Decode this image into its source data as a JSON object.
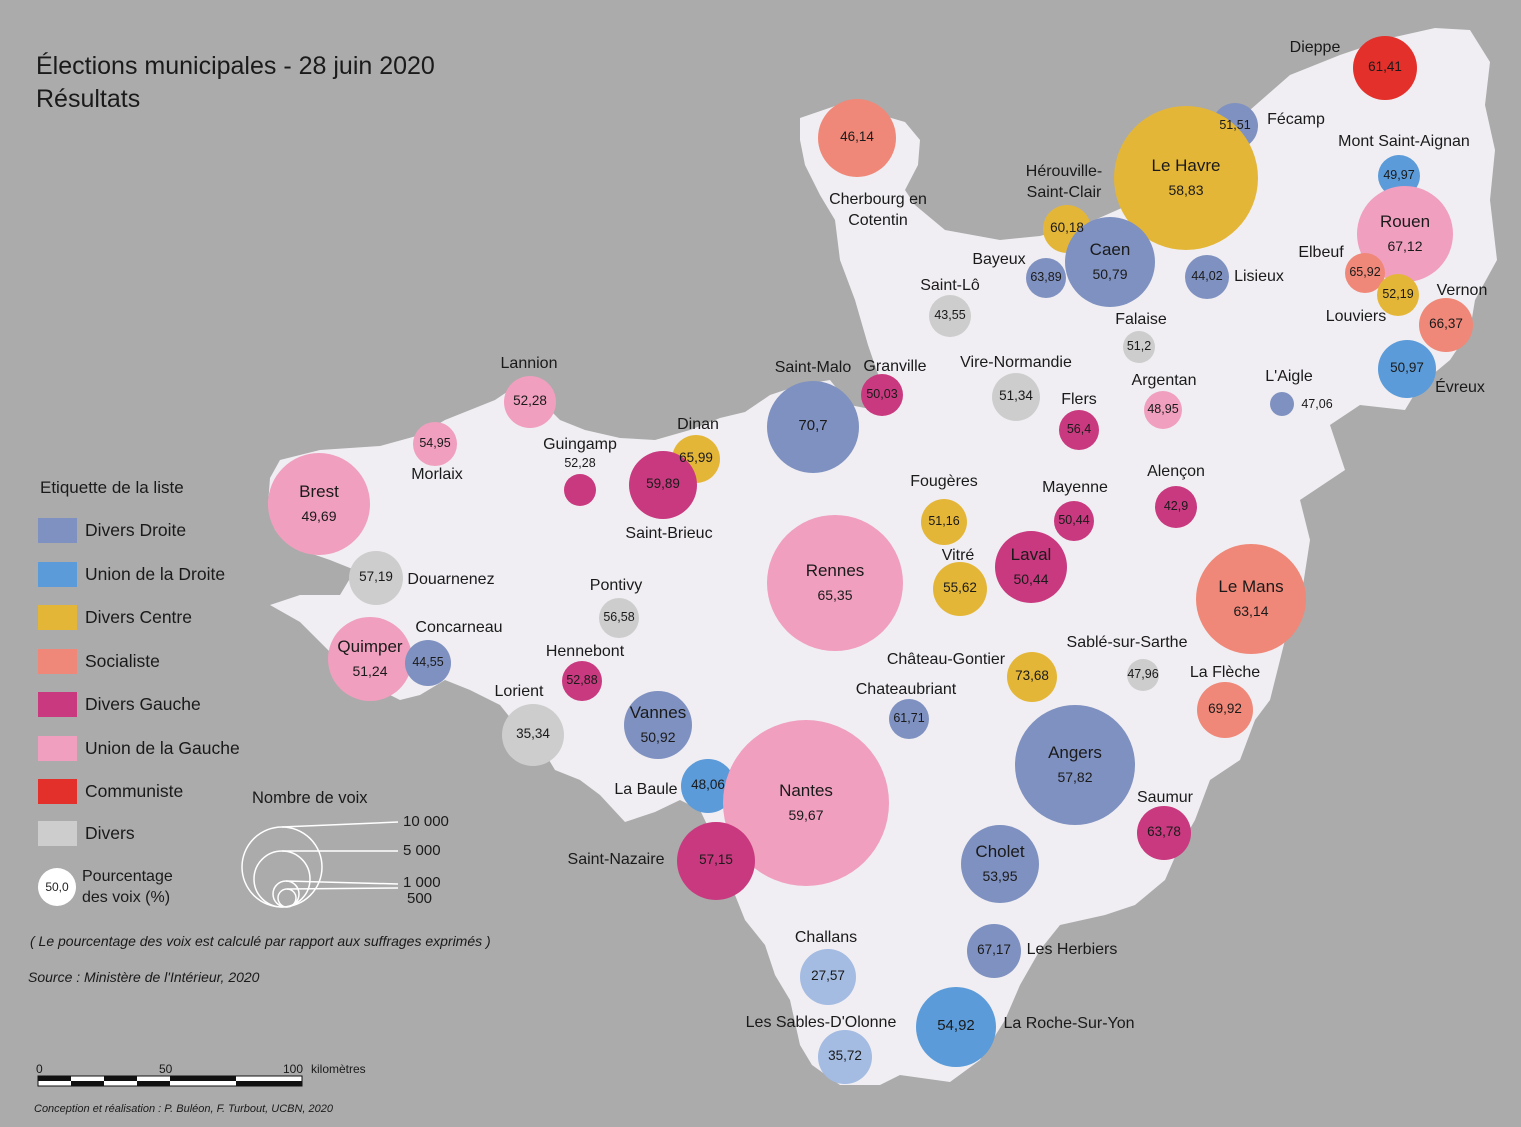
{
  "title": {
    "line1": "Élections municipales - 28 juin 2020",
    "line2": "Résultats"
  },
  "legend": {
    "heading": "Etiquette de la liste",
    "items": [
      {
        "key": "dd",
        "label": "Divers Droite",
        "color": "#7f91c0"
      },
      {
        "key": "ud",
        "label": "Union de la Droite",
        "color": "#5b9bd9"
      },
      {
        "key": "dc",
        "label": "Divers Centre",
        "color": "#e4b638"
      },
      {
        "key": "soc",
        "label": "Socialiste",
        "color": "#ef8878"
      },
      {
        "key": "dg",
        "label": "Divers Gauche",
        "color": "#c8397f"
      },
      {
        "key": "ug",
        "label": "Union de la Gauche",
        "color": "#f09fbe"
      },
      {
        "key": "com",
        "label": "Communiste",
        "color": "#e3302b"
      },
      {
        "key": "div",
        "label": "Divers",
        "color": "#cdcdcd"
      }
    ],
    "pct_example": "50,0",
    "pct_label_1": "Pourcentage",
    "pct_label_2": "des voix (%)"
  },
  "size_legend": {
    "heading": "Nombre de voix",
    "values": [
      "10 000",
      "5 000",
      "1 000",
      "500"
    ]
  },
  "note": "( Le pourcentage des voix est calculé par rapport aux suffrages exprimés )",
  "source": "Source : Ministère de l'Intérieur, 2020",
  "credits": "Conception et réalisation : P. Buléon, F. Turbout, UCBN, 2020",
  "scale": {
    "ticks": [
      "0",
      "50",
      "100"
    ],
    "unit": "kilomètres"
  },
  "cities": [
    {
      "name": "Dieppe",
      "value": "61,41",
      "party": "com"
    },
    {
      "name": "Fécamp",
      "value": "51,51",
      "party": "dd"
    },
    {
      "name": "Le Havre",
      "value": "58,83",
      "party": "dc"
    },
    {
      "name": "Mont Saint-Aignan",
      "value": "49,97",
      "party": "ud"
    },
    {
      "name": "Rouen",
      "value": "67,12",
      "party": "ug"
    },
    {
      "name": "Cherbourg en Cotentin",
      "value": "46,14",
      "party": "soc"
    },
    {
      "name": "Hérouville-Saint-Clair",
      "value": "60,18",
      "party": "dc"
    },
    {
      "name": "Caen",
      "value": "50,79",
      "party": "dd"
    },
    {
      "name": "Bayeux",
      "value": "63,89",
      "party": "dd"
    },
    {
      "name": "Lisieux",
      "value": "44,02",
      "party": "dd"
    },
    {
      "name": "Elbeuf",
      "value": "65,92",
      "party": "soc"
    },
    {
      "name": "Louviers",
      "value": "52,19",
      "party": "dc"
    },
    {
      "name": "Vernon",
      "value": "66,37",
      "party": "soc"
    },
    {
      "name": "Saint-Lô",
      "value": "43,55",
      "party": "div"
    },
    {
      "name": "Falaise",
      "value": "51,2",
      "party": "div"
    },
    {
      "name": "Évreux",
      "value": "50,97",
      "party": "ud"
    },
    {
      "name": "L'Aigle",
      "value": "47,06",
      "party": "dd"
    },
    {
      "name": "Saint-Malo",
      "value": "70,7",
      "party": "dd"
    },
    {
      "name": "Granville",
      "value": "50,03",
      "party": "dg"
    },
    {
      "name": "Vire-Normandie",
      "value": "51,34",
      "party": "div"
    },
    {
      "name": "Flers",
      "value": "56,4",
      "party": "dg"
    },
    {
      "name": "Argentan",
      "value": "48,95",
      "party": "ug"
    },
    {
      "name": "Lannion",
      "value": "52,28",
      "party": "ug"
    },
    {
      "name": "Morlaix",
      "value": "54,95",
      "party": "ug"
    },
    {
      "name": "Guingamp",
      "value": "52,28",
      "party": "dg"
    },
    {
      "name": "Dinan",
      "value": "65,99",
      "party": "dc"
    },
    {
      "name": "Saint-Brieuc",
      "value": "59,89",
      "party": "dg"
    },
    {
      "name": "Brest",
      "value": "49,69",
      "party": "ug"
    },
    {
      "name": "Douarnenez",
      "value": "57,19",
      "party": "div"
    },
    {
      "name": "Fougères",
      "value": "51,16",
      "party": "dc"
    },
    {
      "name": "Mayenne",
      "value": "50,44",
      "party": "dg"
    },
    {
      "name": "Alençon",
      "value": "42,9",
      "party": "dg"
    },
    {
      "name": "Rennes",
      "value": "65,35",
      "party": "ug"
    },
    {
      "name": "Vitré",
      "value": "55,62",
      "party": "dc"
    },
    {
      "name": "Laval",
      "value": "50,44",
      "party": "dg"
    },
    {
      "name": "Le Mans",
      "value": "63,14",
      "party": "soc"
    },
    {
      "name": "Pontivy",
      "value": "56,58",
      "party": "div"
    },
    {
      "name": "Quimper",
      "value": "51,24",
      "party": "ug"
    },
    {
      "name": "Concarneau",
      "value": "44,55",
      "party": "dd"
    },
    {
      "name": "Hennebont",
      "value": "52,88",
      "party": "dg"
    },
    {
      "name": "Sablé-sur-Sarthe",
      "value": "47,96",
      "party": "div"
    },
    {
      "name": "Château-Gontier",
      "value": "73,68",
      "party": "dc"
    },
    {
      "name": "Chateaubriant",
      "value": "61,71",
      "party": "dd"
    },
    {
      "name": "La Flèche",
      "value": "69,92",
      "party": "soc"
    },
    {
      "name": "Lorient",
      "value": "35,34",
      "party": "div"
    },
    {
      "name": "Vannes",
      "value": "50,92",
      "party": "dd"
    },
    {
      "name": "Angers",
      "value": "57,82",
      "party": "dd"
    },
    {
      "name": "La Baule",
      "value": "48,06",
      "party": "ud"
    },
    {
      "name": "Nantes",
      "value": "59,67",
      "party": "ug"
    },
    {
      "name": "Saumur",
      "value": "63,78",
      "party": "dg"
    },
    {
      "name": "Saint-Nazaire",
      "value": "57,15",
      "party": "dg"
    },
    {
      "name": "Cholet",
      "value": "53,95",
      "party": "dd"
    },
    {
      "name": "Challans",
      "value": "27,57",
      "party": "lb"
    },
    {
      "name": "Les Herbiers",
      "value": "67,17",
      "party": "dd"
    },
    {
      "name": "Les Sables-D'Olonne",
      "value": "35,72",
      "party": "lb"
    },
    {
      "name": "La Roche-Sur-Yon",
      "value": "54,92",
      "party": "ud"
    }
  ],
  "colors": {
    "background": "#ababab",
    "land": "#f0eef2",
    "lb": "#a4bbe2"
  }
}
